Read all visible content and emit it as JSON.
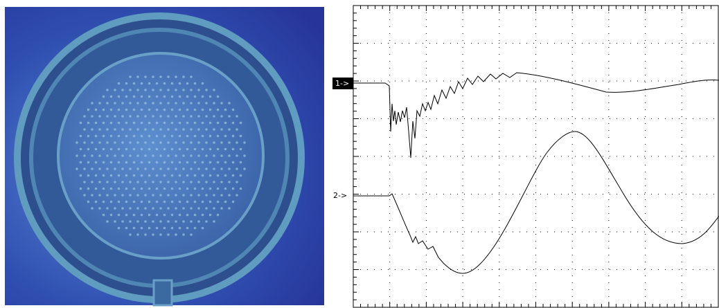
{
  "channels": [
    {
      "label": "1->"
    },
    {
      "label": "2->"
    }
  ]
}
